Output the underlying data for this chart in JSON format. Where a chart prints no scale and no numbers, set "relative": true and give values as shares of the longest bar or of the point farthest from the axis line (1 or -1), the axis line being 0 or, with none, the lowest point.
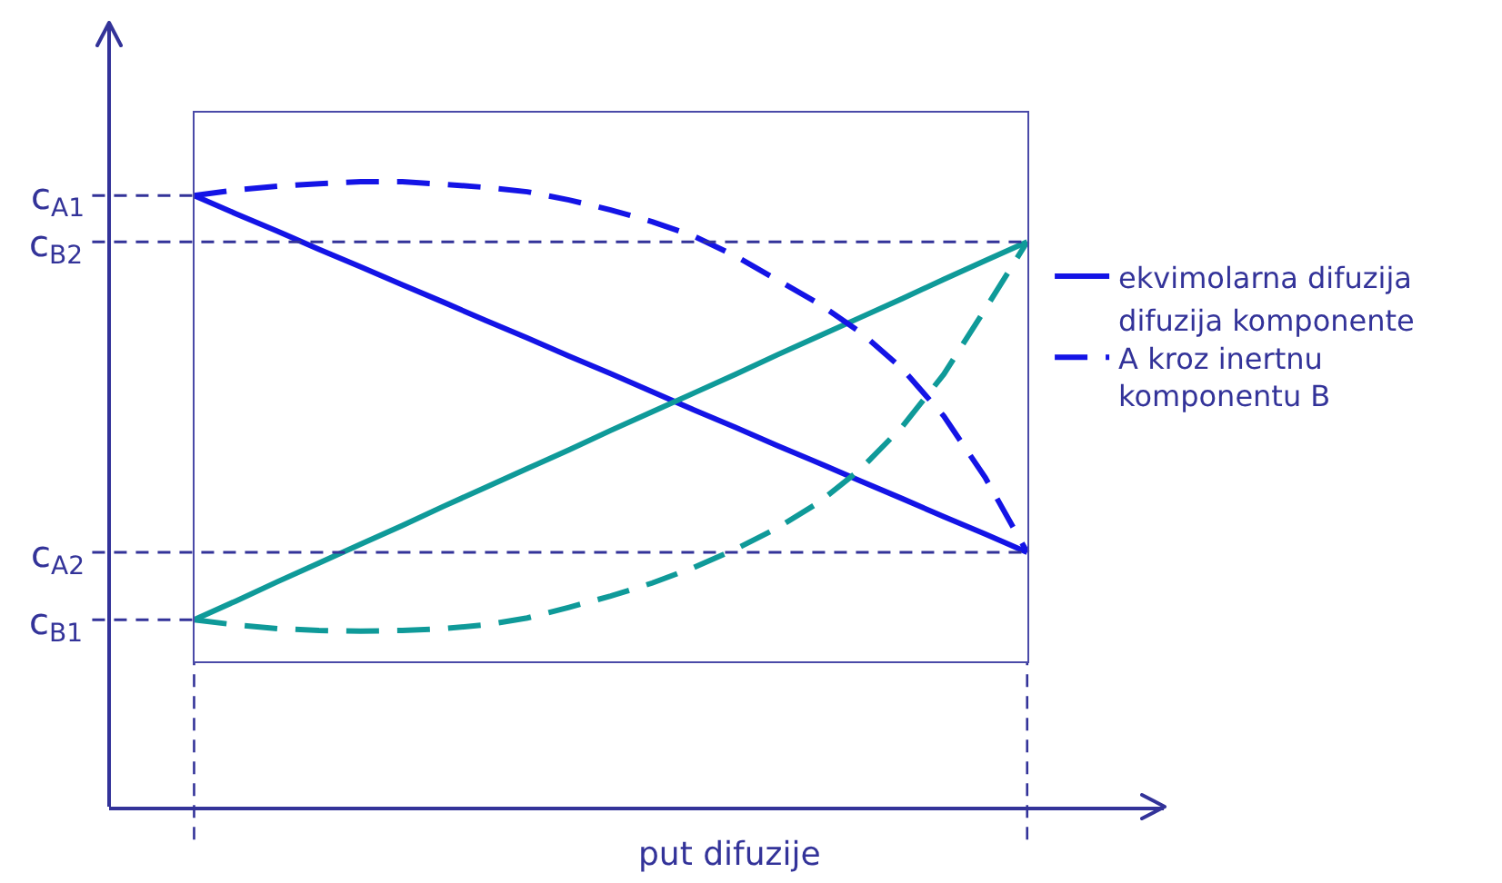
{
  "chart_data": {
    "type": "line",
    "relative": true,
    "xlabel": "put difuzije",
    "categories": [
      null,
      null,
      null,
      null,
      null,
      null,
      null,
      null,
      null,
      null,
      null,
      null,
      null,
      null,
      null,
      null,
      null,
      null,
      null,
      null,
      null
    ],
    "series": [
      {
        "name": "ekvimolarna difuzija",
        "color": "#1414e6",
        "line_style": "solid",
        "values": [
          0.978,
          0.949,
          0.921,
          0.892,
          0.864,
          0.835,
          0.807,
          0.778,
          0.75,
          0.721,
          0.693,
          0.664,
          0.635,
          0.607,
          0.578,
          0.55,
          0.521,
          0.493,
          0.464,
          0.436,
          0.407
        ]
      },
      {
        "color": "#0f9a99",
        "line_style": "solid",
        "values": [
          0.299,
          0.329,
          0.36,
          0.39,
          0.42,
          0.45,
          0.481,
          0.511,
          0.541,
          0.571,
          0.602,
          0.632,
          0.662,
          0.692,
          0.723,
          0.753,
          0.783,
          0.813,
          0.844,
          0.874,
          0.904
        ]
      },
      {
        "name": "difuzija komponente A kroz inertnu komponentu B",
        "color": "#1414e6",
        "line_style": "dashed",
        "values": [
          0.978,
          0.987,
          0.993,
          0.997,
          1,
          1,
          0.996,
          0.991,
          0.984,
          0.971,
          0.955,
          0.936,
          0.913,
          0.881,
          0.843,
          0.805,
          0.759,
          0.701,
          0.625,
          0.526,
          0.407
        ]
      },
      {
        "color": "#0f9a99",
        "line_style": "dashed",
        "values": [
          0.299,
          0.291,
          0.285,
          0.282,
          0.281,
          0.282,
          0.285,
          0.291,
          0.302,
          0.319,
          0.337,
          0.358,
          0.383,
          0.412,
          0.446,
          0.487,
          0.54,
          0.608,
          0.692,
          0.797,
          0.904
        ]
      }
    ],
    "ref_lines": [
      {
        "axis": "y",
        "value": 0.978,
        "label": "c$_{A1}$",
        "color": "#333399",
        "line_style": "dashed"
      },
      {
        "axis": "y",
        "value": 0.904,
        "label": "c$_{B2}$",
        "color": "#333399",
        "line_style": "dashed"
      },
      {
        "axis": "y",
        "value": 0.407,
        "label": "c$_{A2}$",
        "color": "#333399",
        "line_style": "dashed"
      },
      {
        "axis": "y",
        "value": 0.299,
        "label": "c$_{B1}$",
        "color": "#333399",
        "line_style": "dashed"
      }
    ],
    "legend": "right"
  }
}
